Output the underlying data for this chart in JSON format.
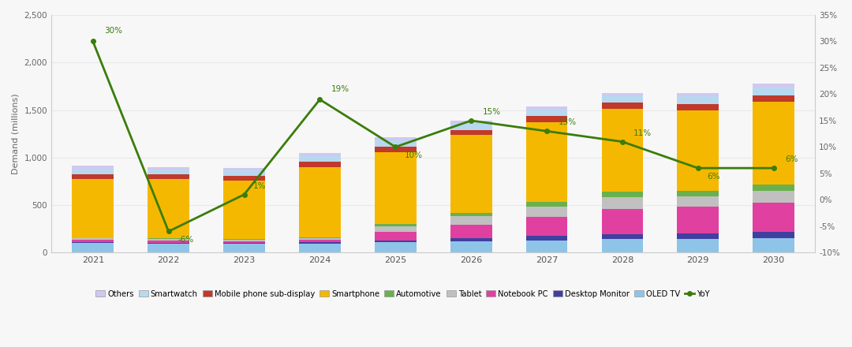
{
  "years": [
    2021,
    2022,
    2023,
    2024,
    2025,
    2026,
    2027,
    2028,
    2029,
    2030
  ],
  "yoy": [
    30,
    -6,
    1,
    19,
    10,
    15,
    13,
    11,
    6,
    6
  ],
  "segments": {
    "OLED TV": [
      100,
      95,
      90,
      95,
      110,
      120,
      130,
      140,
      145,
      150
    ],
    "Mobile phone sub-display": [
      50,
      50,
      50,
      55,
      55,
      55,
      60,
      60,
      65,
      70
    ],
    "Smartwatch": [
      60,
      55,
      55,
      60,
      65,
      65,
      70,
      75,
      80,
      85
    ],
    "Others": [
      30,
      25,
      25,
      30,
      30,
      30,
      30,
      30,
      30,
      35
    ],
    "Smartphone": [
      620,
      620,
      620,
      740,
      760,
      820,
      840,
      870,
      850,
      870
    ],
    "Automotive": [
      5,
      5,
      5,
      10,
      20,
      35,
      50,
      65,
      60,
      65
    ],
    "Tablet": [
      15,
      15,
      15,
      15,
      60,
      90,
      110,
      125,
      110,
      125
    ],
    "Notebook PC": [
      25,
      25,
      20,
      25,
      90,
      140,
      200,
      260,
      280,
      310
    ],
    "Desktop Monitor": [
      10,
      10,
      10,
      15,
      20,
      30,
      45,
      55,
      55,
      65
    ]
  },
  "colors": {
    "OLED TV": "#8ec4e8",
    "Desktop Monitor": "#4040a0",
    "Notebook PC": "#e040a0",
    "Tablet": "#c0c0c0",
    "Automotive": "#6ab04c",
    "Smartphone": "#f5b800",
    "Mobile phone sub-display": "#c0392b",
    "Smartwatch": "#b8d8f0",
    "Others": "#d0c8f0"
  },
  "stack_order": [
    "OLED TV",
    "Desktop Monitor",
    "Notebook PC",
    "Tablet",
    "Automotive",
    "Smartphone",
    "Mobile phone sub-display",
    "Smartwatch",
    "Others"
  ],
  "legend_order": [
    "Others",
    "Smartwatch",
    "Mobile phone sub-display",
    "Smartphone",
    "Automotive",
    "Tablet",
    "Notebook PC",
    "Desktop Monitor",
    "OLED TV"
  ],
  "ylabel_left": "Demand (millions)",
  "ylim_left": [
    0,
    2500
  ],
  "ylim_right": [
    -10,
    35
  ],
  "yticks_left": [
    0,
    500,
    1000,
    1500,
    2000,
    2500
  ],
  "yticks_right": [
    -10,
    -5,
    0,
    5,
    10,
    15,
    20,
    25,
    30,
    35
  ],
  "yticklabels_right": [
    "-10%",
    "-5%",
    "0%",
    "5%",
    "10%",
    "15%",
    "20%",
    "25%",
    "30%",
    "35%"
  ],
  "line_color": "#3a7d0a",
  "grid_color": "#e8e8e8",
  "background_color": "#f7f7f7"
}
